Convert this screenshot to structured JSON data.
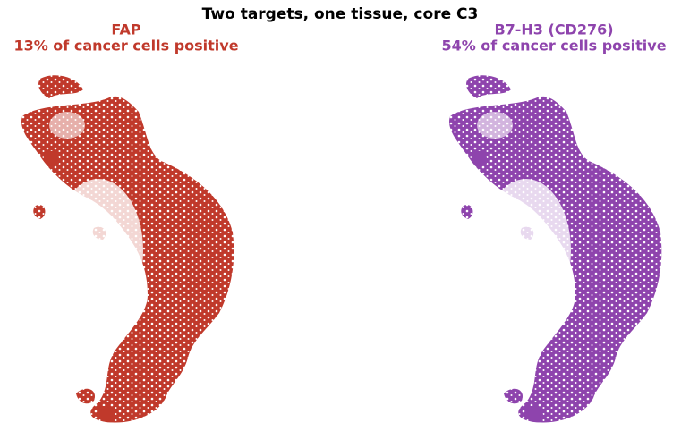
{
  "title": "Two targets, one tissue, core C3",
  "panels": [
    {
      "name": "FAP",
      "subtitle": "13% of cancer cells positive",
      "color": "#c0392b"
    },
    {
      "name": "B7-H3 (CD276)",
      "subtitle": "54% of cancer cells positive",
      "color": "#8e44ad"
    }
  ]
}
